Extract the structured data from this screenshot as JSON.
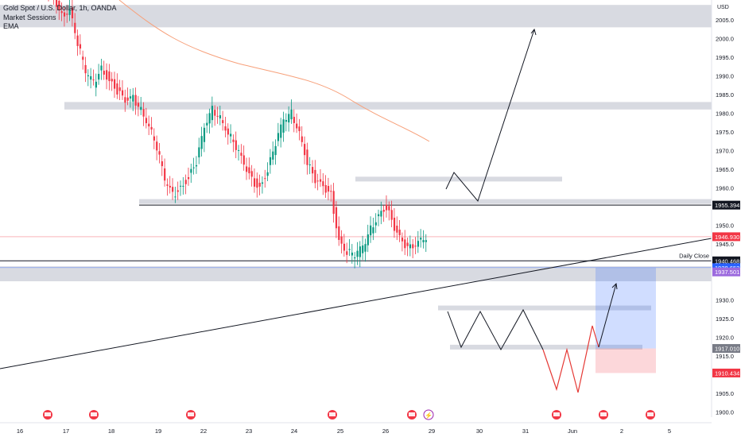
{
  "legend": {
    "symbol": "Gold Spot / U.S. Dollar, 1h, OANDA",
    "indicator_1": "Market Sessions",
    "indicator_2": "EMA"
  },
  "chart_data": {
    "type": "candlestick",
    "title": "Gold Spot / U.S. Dollar, 1h, OANDA",
    "currency_label": "USD",
    "y_ticks": [
      1900,
      1905,
      1910,
      1915,
      1920,
      1925,
      1930,
      1945,
      1950,
      1960,
      1965,
      1970,
      1975,
      1980,
      1985,
      1990,
      1995,
      2000,
      2005
    ],
    "x_ticks": [
      "16",
      "17",
      "18",
      "19",
      "22",
      "23",
      "24",
      "25",
      "26",
      "29",
      "30",
      "31",
      "Jun",
      "2",
      "5"
    ],
    "close_series": [
      [
        0,
        2012
      ],
      [
        3,
        2011
      ],
      [
        6,
        2006
      ],
      [
        9,
        2008
      ],
      [
        12,
        1999
      ],
      [
        15,
        1991
      ],
      [
        18,
        1988
      ],
      [
        21,
        1992
      ],
      [
        24,
        1989
      ],
      [
        27,
        1986
      ],
      [
        30,
        1983
      ],
      [
        33,
        1984
      ],
      [
        36,
        1981
      ],
      [
        39,
        1977
      ],
      [
        42,
        1971
      ],
      [
        45,
        1962
      ],
      [
        48,
        1958
      ],
      [
        51,
        1960
      ],
      [
        54,
        1963
      ],
      [
        57,
        1967
      ],
      [
        60,
        1976
      ],
      [
        63,
        1981
      ],
      [
        66,
        1979
      ],
      [
        69,
        1975
      ],
      [
        72,
        1971
      ],
      [
        75,
        1966
      ],
      [
        78,
        1962
      ],
      [
        81,
        1960
      ],
      [
        84,
        1965
      ],
      [
        87,
        1972
      ],
      [
        90,
        1978
      ],
      [
        93,
        1980
      ],
      [
        96,
        1975
      ],
      [
        99,
        1967
      ],
      [
        102,
        1962
      ],
      [
        105,
        1960
      ],
      [
        108,
        1958
      ],
      [
        111,
        1946
      ],
      [
        114,
        1943
      ],
      [
        117,
        1942
      ],
      [
        120,
        1944
      ],
      [
        123,
        1949
      ],
      [
        126,
        1953
      ],
      [
        129,
        1955
      ],
      [
        132,
        1949
      ],
      [
        135,
        1945
      ],
      [
        138,
        1944
      ],
      [
        141,
        1946
      ],
      [
        144,
        1947
      ]
    ],
    "highlighted_prices": [
      {
        "label": "1955.394",
        "value": 1955.394,
        "color": "#131722"
      },
      {
        "label": "1946.930",
        "value": 1946.93,
        "color": "#f23645"
      },
      {
        "label": "1940.468",
        "value": 1940.468,
        "color": "#131722"
      },
      {
        "label": "1938.653",
        "value": 1938.653,
        "color": "#2962ff"
      },
      {
        "label": "1937.501",
        "value": 1937.501,
        "color": "#9c6ade"
      },
      {
        "label": "1917.010",
        "value": 1917.01,
        "color": "#787b86"
      },
      {
        "label": "1910.434",
        "value": 1910.434,
        "color": "#f23645"
      }
    ],
    "annotations": {
      "daily_close_label": "Daily Close",
      "zones": [
        {
          "name": "supply-zone-top",
          "low": 2003,
          "high": 2009
        },
        {
          "name": "resistance-zone",
          "low": 1981,
          "high": 1983
        },
        {
          "name": "mid-resistance",
          "low": 1962,
          "high": 1963
        },
        {
          "name": "support-zone",
          "low": 1956,
          "high": 1957
        },
        {
          "name": "demand-zone",
          "low": 1935,
          "high": 1939
        },
        {
          "name": "pattern-resistance",
          "low": 1927.5,
          "high": 1928.5
        },
        {
          "name": "pattern-support",
          "low": 1917,
          "high": 1918
        }
      ],
      "long_position": {
        "entry": 1917.01,
        "target": 1938.653,
        "stop": 1910.434
      }
    },
    "colors": {
      "bull": "#089981",
      "bear": "#f23645",
      "ema": "#f7a07a",
      "projection": "#131722",
      "red_path": "#e53935"
    }
  }
}
